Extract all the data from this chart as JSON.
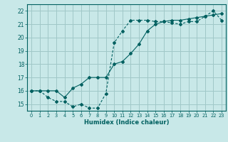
{
  "xlabel": "Humidex (Indice chaleur)",
  "bg_color": "#c8e8e8",
  "grid_color": "#a0c8c8",
  "line_color": "#006060",
  "xlim": [
    -0.5,
    23.5
  ],
  "ylim": [
    14.5,
    22.5
  ],
  "xticks": [
    0,
    1,
    2,
    3,
    4,
    5,
    6,
    7,
    8,
    9,
    10,
    11,
    12,
    13,
    14,
    15,
    16,
    17,
    18,
    19,
    20,
    21,
    22,
    23
  ],
  "yticks": [
    15,
    16,
    17,
    18,
    19,
    20,
    21,
    22
  ],
  "line1_x": [
    0,
    1,
    2,
    3,
    4,
    5,
    6,
    7,
    8,
    9,
    10,
    11,
    12,
    13,
    14,
    15,
    16,
    17,
    18,
    19,
    20,
    21,
    22,
    23
  ],
  "line1_y": [
    16.0,
    16.0,
    15.5,
    15.2,
    15.2,
    14.8,
    15.0,
    14.7,
    14.7,
    15.8,
    19.6,
    20.5,
    21.3,
    21.3,
    21.3,
    21.2,
    21.2,
    21.1,
    21.0,
    21.2,
    21.2,
    21.6,
    22.0,
    21.3
  ],
  "line2_x": [
    0,
    1,
    2,
    3,
    4,
    5,
    6,
    7,
    8,
    9,
    10,
    11,
    12,
    13,
    14,
    15,
    16,
    17,
    18,
    19,
    20,
    21,
    22,
    23
  ],
  "line2_y": [
    16.0,
    16.0,
    16.0,
    16.0,
    15.5,
    16.2,
    16.5,
    17.0,
    17.0,
    17.0,
    18.0,
    18.2,
    18.8,
    19.5,
    20.5,
    21.0,
    21.2,
    21.3,
    21.3,
    21.4,
    21.5,
    21.6,
    21.7,
    21.8
  ]
}
